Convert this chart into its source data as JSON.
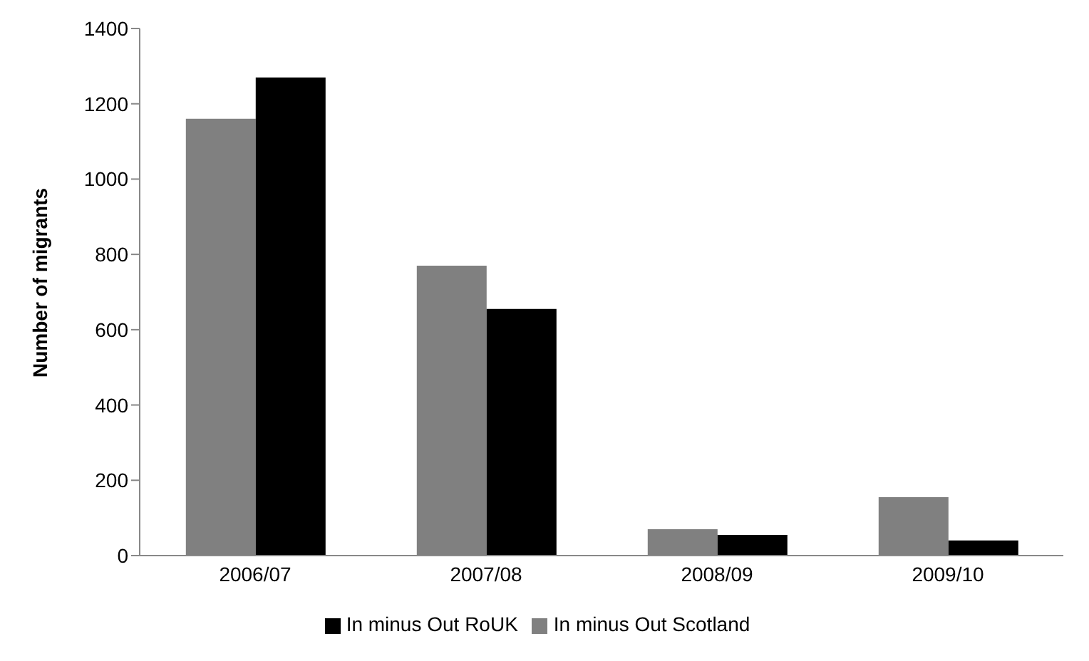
{
  "chart_data": {
    "type": "bar",
    "ylabel": "Number of migrants",
    "categories": [
      "2006/07",
      "2007/08",
      "2008/09",
      "2009/10"
    ],
    "series": [
      {
        "name": "In minus Out Scotland",
        "color": "#808080",
        "values": [
          1160,
          770,
          70,
          155
        ]
      },
      {
        "name": "In minus Out RoUK",
        "color": "#000000",
        "values": [
          1270,
          655,
          55,
          40
        ]
      }
    ],
    "ylim": [
      0,
      1400
    ],
    "yticks": [
      0,
      200,
      400,
      600,
      800,
      1000,
      1200,
      1400
    ],
    "grid": false,
    "legend": "bottom"
  }
}
